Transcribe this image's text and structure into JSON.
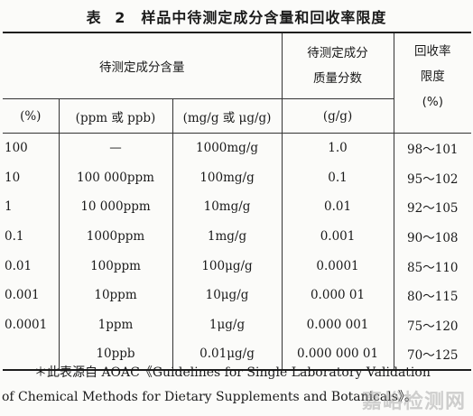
{
  "title": "表 2　样品中待测定成分含量和回收率限度",
  "header": {
    "group": "待测定成分含量",
    "mass_fraction_line1": "待测定成分",
    "mass_fraction_line2": "质量分数",
    "recovery_line1": "回收率",
    "recovery_line2": "限度",
    "unit_percent": "(%)",
    "unit_ppm": "(ppm 或 ppb)",
    "unit_mg": "(mg/g 或 μg/g)",
    "unit_gg": "(g/g)",
    "unit_recovery": "(%)"
  },
  "rows": [
    {
      "percent": "100",
      "ppm": "—",
      "mgg": "1000mg/g",
      "gg": "1.0",
      "rec": "98～101"
    },
    {
      "percent": "10",
      "ppm": "100 000ppm",
      "mgg": "100mg/g",
      "gg": "0.1",
      "rec": "95～102"
    },
    {
      "percent": "1",
      "ppm": "10 000ppm",
      "mgg": "10mg/g",
      "gg": "0.01",
      "rec": "92～105"
    },
    {
      "percent": "0.1",
      "ppm": "1000ppm",
      "mgg": "1mg/g",
      "gg": "0.001",
      "rec": "90～108"
    },
    {
      "percent": "0.01",
      "ppm": "100ppm",
      "mgg": "100μg/g",
      "gg": "0.0001",
      "rec": "85～110"
    },
    {
      "percent": "0.001",
      "ppm": "10ppm",
      "mgg": "10μg/g",
      "gg": "0.000 01",
      "rec": "80～115"
    },
    {
      "percent": "0.0001",
      "ppm": "1ppm",
      "mgg": "1μg/g",
      "gg": "0.000 001",
      "rec": "75～120"
    },
    {
      "percent": "",
      "ppm": "10ppb",
      "mgg": "0.01μg/g",
      "gg": "0.000 000 01",
      "rec": "70～125"
    }
  ],
  "note": {
    "line1": "＊此表源自 AOAC《Guidelines for Single Laboratory Validation",
    "line2": "of Chemical Methods for Dietary Supplements and Botanicals》。"
  },
  "watermark": "嘉峪检测网"
}
